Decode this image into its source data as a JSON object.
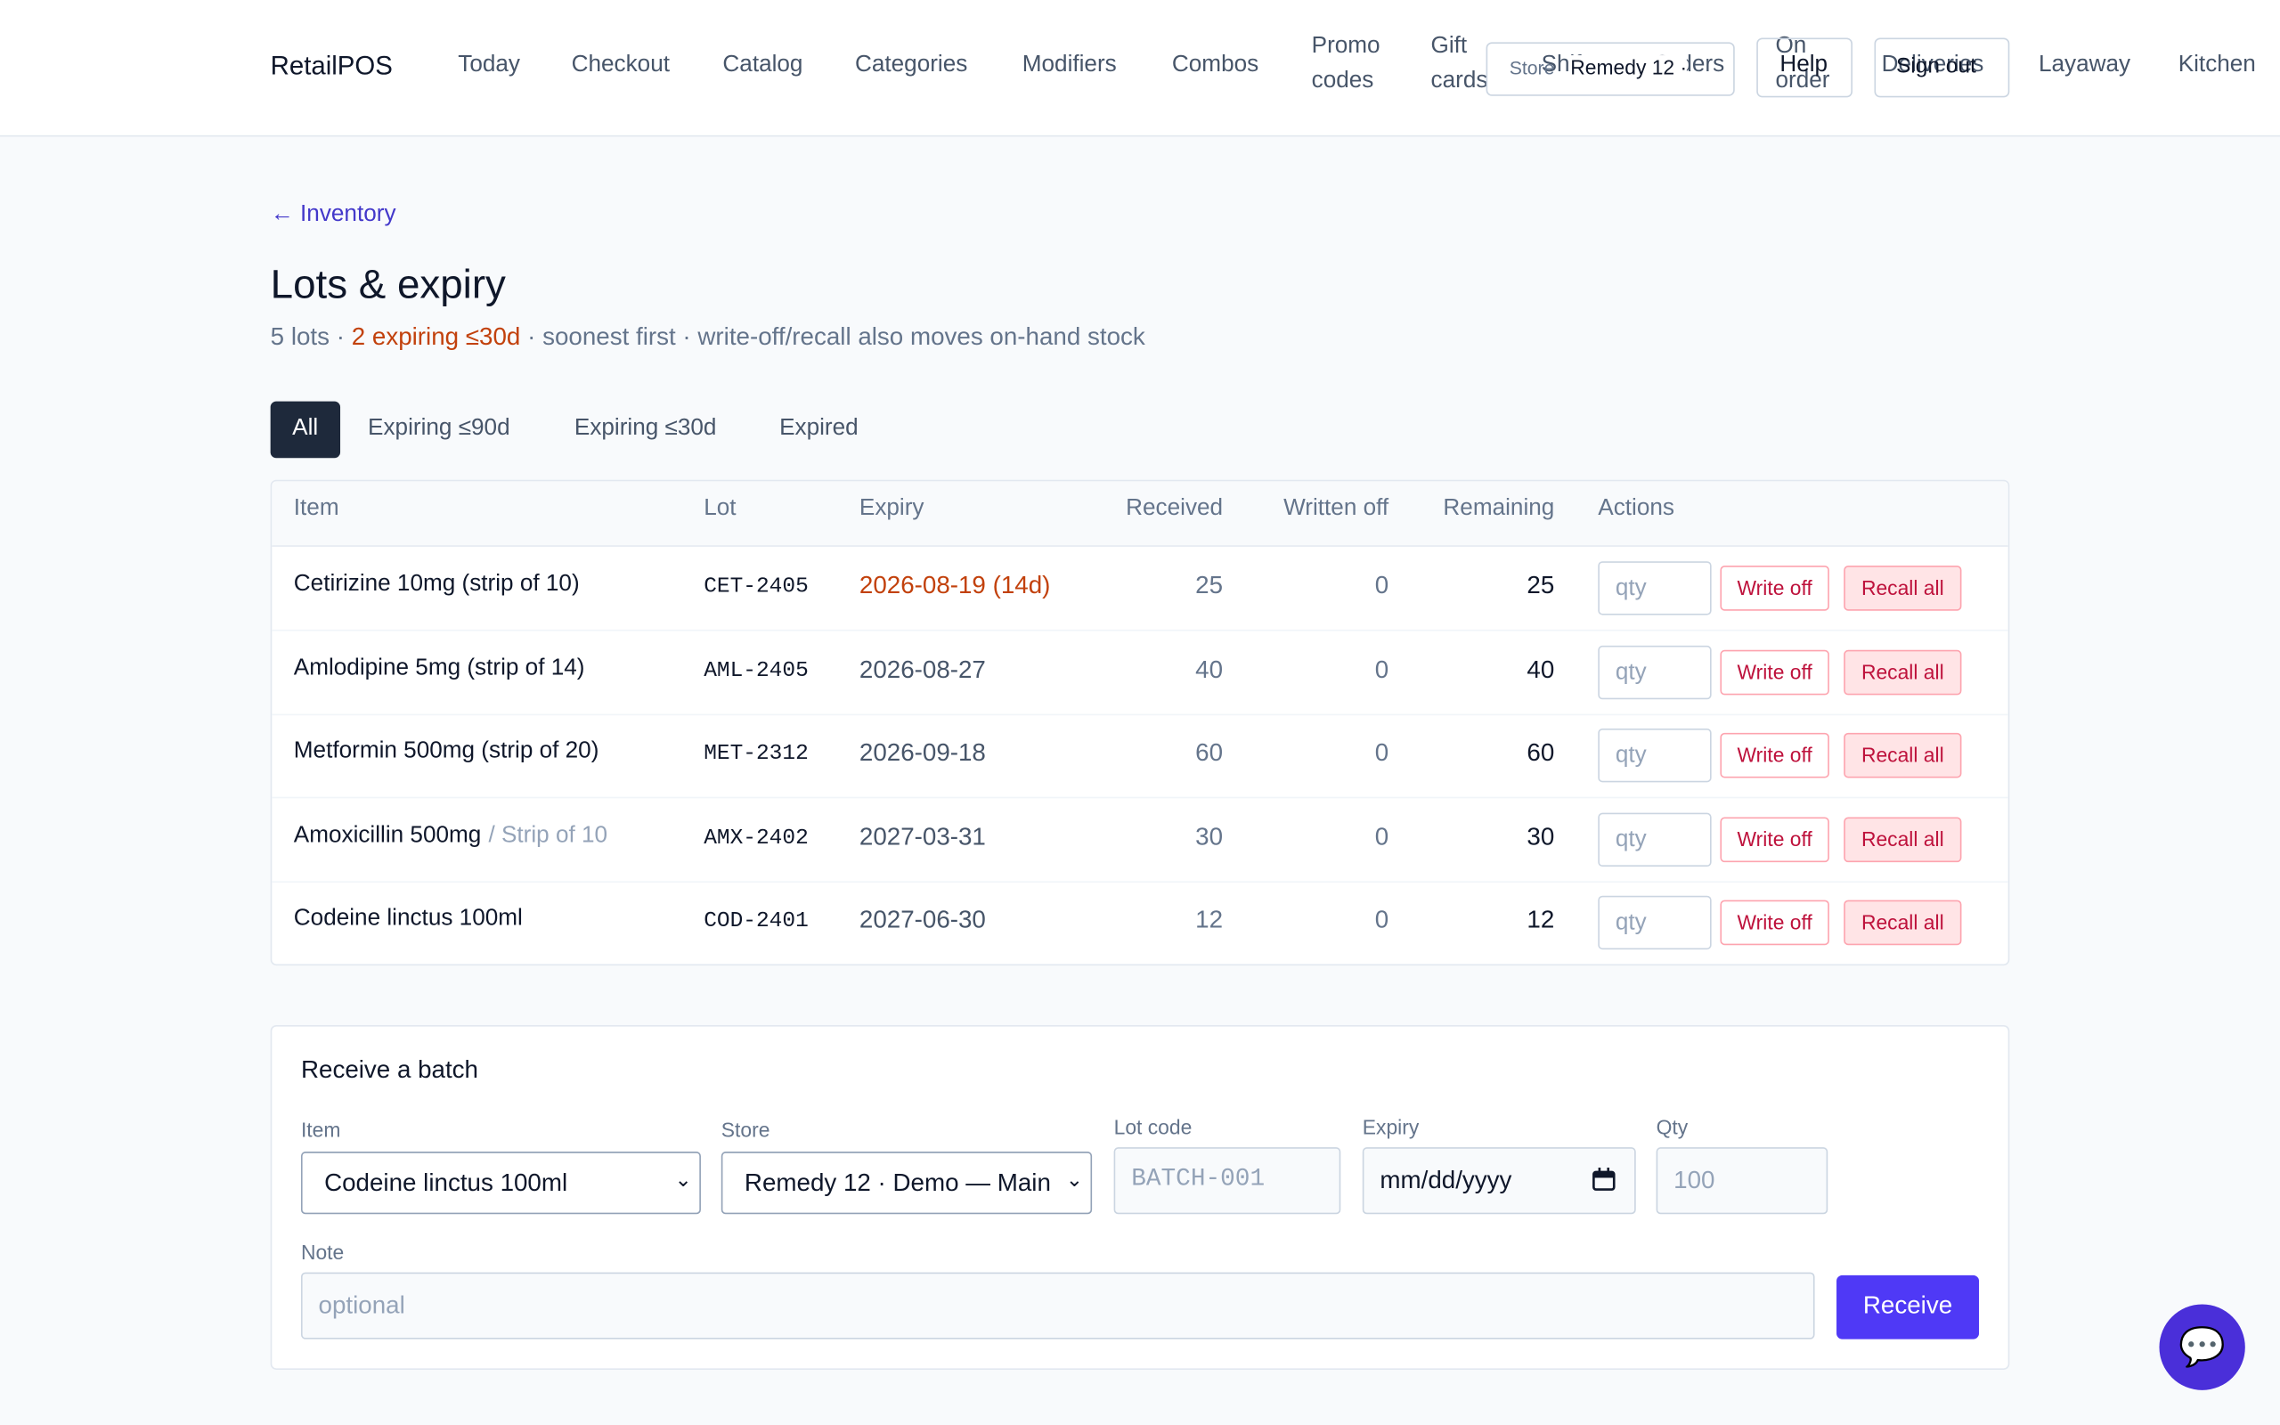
{
  "header": {
    "brand": "RetailPOS",
    "nav": [
      "Today",
      "Checkout",
      "Catalog",
      "Categories",
      "Modifiers",
      "Combos",
      "Promo codes",
      "Gift cards",
      "Shifts",
      "Orders",
      "On order",
      "Deliveries",
      "Layaway",
      "Kitchen"
    ],
    "store_label": "Store",
    "store_value": "Remedy 12 ·",
    "help": "Help",
    "sign_out": "Sign out"
  },
  "breadcrumb": "← Inventory",
  "title": "Lots & expiry",
  "subtitle": {
    "separator": "·",
    "parts": [
      "5 lots",
      "2 expiring ≤30d",
      "soonest first · write-off/recall also moves on-hand stock"
    ]
  },
  "tabs": [
    "All",
    "Expiring ≤90d",
    "Expiring ≤30d",
    "Expired"
  ],
  "table": {
    "headers": [
      "Item",
      "Lot",
      "Expiry",
      "Received",
      "Written off",
      "Remaining",
      "Actions"
    ],
    "rows": [
      {
        "item": "Cetirizine 10mg (strip of 10)",
        "lot": "CET-2405",
        "expiry": "2026-08-19 (14d)",
        "received": 25,
        "written_off": 0,
        "remaining": 25
      },
      {
        "item": "Amlodipine 5mg (strip of 14)",
        "lot": "AML-2405",
        "expiry": "2026-08-27",
        "received": 40,
        "written_off": 0,
        "remaining": 40
      },
      {
        "item": "Metformin 500mg (strip of 20)",
        "lot": "MET-2312",
        "expiry": "2026-09-18",
        "received": 60,
        "written_off": 0,
        "remaining": 60
      },
      {
        "item": "Amoxicillin 500mg",
        "item_unit": "/ Strip of 10",
        "lot": "AMX-2402",
        "expiry": "2027-03-31",
        "received": 30,
        "written_off": 0,
        "remaining": 30
      },
      {
        "item": "Codeine linctus 100ml",
        "lot": "COD-2401",
        "expiry": "2027-06-30",
        "received": 12,
        "written_off": 0,
        "remaining": 12
      }
    ],
    "qty_placeholder": "qty",
    "write_off": "Write off",
    "recall_all": "Recall all"
  },
  "form": {
    "title": "Receive a batch",
    "item_label": "Item",
    "item_value": "Codeine linctus 100ml",
    "store_label": "Store",
    "store_value": "Remedy 12 · Demo — Main",
    "lot_label": "Lot code",
    "lot_placeholder": "BATCH-001",
    "expiry_label": "Expiry",
    "expiry_placeholder": "mm/dd/yyyy",
    "qty_label": "Qty",
    "qty_placeholder": "100",
    "note_label": "Note",
    "note_placeholder": "optional",
    "submit": "Receive"
  }
}
